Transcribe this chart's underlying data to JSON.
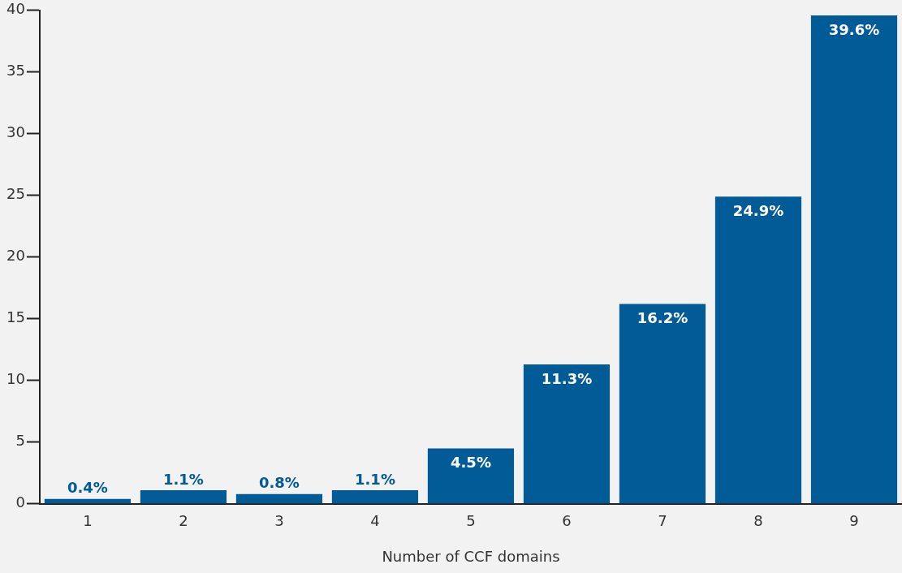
{
  "chart_data": {
    "type": "bar",
    "xlabel": "Number of CCF domains",
    "categories": [
      "1",
      "2",
      "3",
      "4",
      "5",
      "6",
      "7",
      "8",
      "9"
    ],
    "values": [
      0.4,
      1.1,
      0.8,
      1.1,
      4.5,
      11.3,
      16.2,
      24.9,
      39.6
    ],
    "value_labels": [
      "0.4%",
      "1.1%",
      "0.8%",
      "1.1%",
      "4.5%",
      "11.3%",
      "16.2%",
      "24.9%",
      "39.6%"
    ],
    "color": "#005b96",
    "ylim": [
      0,
      40
    ],
    "yticks": [
      0,
      5,
      10,
      15,
      20,
      25,
      30,
      35,
      40
    ],
    "grid": false,
    "legend": false
  }
}
